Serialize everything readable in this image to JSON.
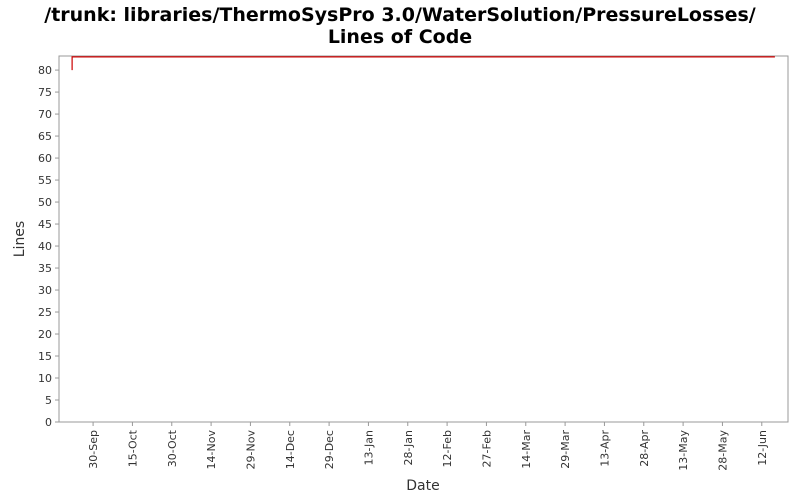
{
  "chart_data": {
    "type": "line",
    "title": [
      "/trunk: libraries/ThermoSysPro 3.0/WaterSolution/PressureLosses/",
      "Lines of Code"
    ],
    "xlabel": "Date",
    "ylabel": "Lines",
    "x": [
      "22-Sep",
      "22-Sep",
      "17-Jun"
    ],
    "series": [
      {
        "name": "Lines",
        "color": "#cc0000",
        "values": [
          80,
          83,
          83
        ]
      }
    ],
    "xlim": [
      "17-Sep",
      "22-Jun"
    ],
    "xticks": [
      "30-Sep",
      "15-Oct",
      "30-Oct",
      "14-Nov",
      "29-Nov",
      "14-Dec",
      "29-Dec",
      "13-Jan",
      "28-Jan",
      "12-Feb",
      "27-Feb",
      "14-Mar",
      "29-Mar",
      "13-Apr",
      "28-Apr",
      "13-May",
      "28-May",
      "12-Jun"
    ],
    "ylim": [
      0,
      83.2
    ],
    "yticks": [
      0,
      5,
      10,
      15,
      20,
      25,
      30,
      35,
      40,
      45,
      50,
      55,
      60,
      65,
      70,
      75,
      80
    ],
    "grid": false
  }
}
